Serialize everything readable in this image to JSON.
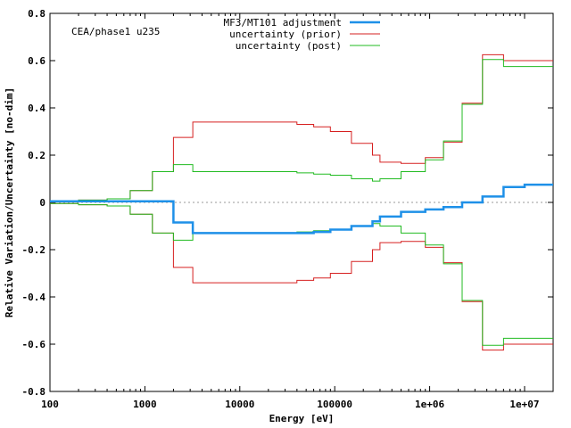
{
  "chart_data": {
    "type": "line",
    "xscale": "log",
    "xlim": [
      100,
      20000000
    ],
    "ylim": [
      -0.8,
      0.8
    ],
    "xlabel": "Energy [eV]",
    "ylabel": "Relative Variation/Uncertainty [no-dim]",
    "annotation": "CEA/phase1 u235",
    "zero_line": true,
    "legend_position": "top-right",
    "x_ticks": [
      100,
      1000,
      10000,
      100000,
      1000000,
      10000000
    ],
    "x_tick_labels": [
      "100",
      "1000",
      "10000",
      "100000",
      "1e+06",
      "1e+07"
    ],
    "y_ticks": [
      -0.8,
      -0.6,
      -0.4,
      -0.2,
      0,
      0.2,
      0.4,
      0.6,
      0.8
    ],
    "y_tick_labels": [
      "-0.8",
      "-0.6",
      "-0.4",
      "-0.2",
      "0",
      "0.2",
      "0.4",
      "0.6",
      "0.8"
    ],
    "bin_edges": [
      100,
      200,
      400,
      700,
      1200,
      2000,
      3200,
      40000,
      60000,
      90000,
      150000,
      250000,
      300000,
      500000,
      900000,
      1400000,
      2200000,
      3600000,
      6000000,
      10000000,
      20000000
    ],
    "series": [
      {
        "name": "MF3/MT101 adjustment",
        "color": "#1e90e8",
        "stroke_width": 2.5,
        "mirror": false,
        "values": [
          0.005,
          0.005,
          0.005,
          0.005,
          0.005,
          -0.085,
          -0.13,
          -0.13,
          -0.125,
          -0.115,
          -0.1,
          -0.08,
          -0.06,
          -0.04,
          -0.03,
          -0.02,
          0.0,
          0.025,
          0.065,
          0.075
        ]
      },
      {
        "name": "uncertainty (prior)",
        "color": "#d62020",
        "stroke_width": 1,
        "mirror": true,
        "values": [
          0.005,
          0.01,
          0.015,
          0.05,
          0.13,
          0.275,
          0.34,
          0.33,
          0.32,
          0.3,
          0.25,
          0.2,
          0.17,
          0.165,
          0.19,
          0.255,
          0.42,
          0.625,
          0.6,
          0.6
        ]
      },
      {
        "name": "uncertainty (post)",
        "color": "#22bb22",
        "stroke_width": 1,
        "mirror": true,
        "values": [
          0.005,
          0.01,
          0.015,
          0.05,
          0.13,
          0.16,
          0.13,
          0.125,
          0.12,
          0.115,
          0.1,
          0.09,
          0.1,
          0.13,
          0.18,
          0.26,
          0.415,
          0.605,
          0.575,
          0.575
        ]
      }
    ]
  }
}
